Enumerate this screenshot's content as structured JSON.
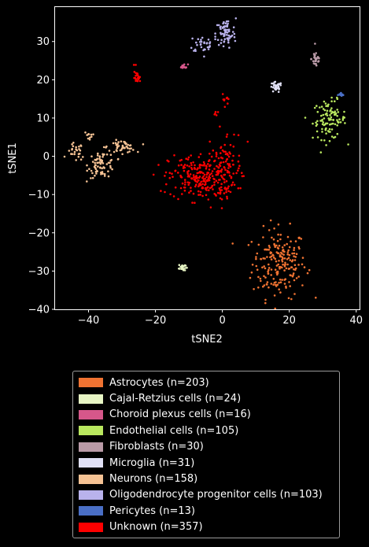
{
  "chart_data": {
    "type": "scatter",
    "xlabel": "tSNE2",
    "ylabel": "tSNE1",
    "xlim": [
      -50,
      41
    ],
    "ylim": [
      -40,
      39
    ],
    "xticks": [
      -40,
      -20,
      0,
      20,
      40
    ],
    "yticks": [
      -40,
      -30,
      -20,
      -10,
      0,
      10,
      20,
      30
    ],
    "grid": false,
    "legend_position": "bottom, outside plot",
    "series": [
      {
        "name": "Astrocytes (n=203)",
        "color": "#f07332",
        "clusters": [
          {
            "cx": 17,
            "cy": -28,
            "sx": 4,
            "sy": 4.5,
            "n": 203
          }
        ]
      },
      {
        "name": "Cajal-Retzius cells (n=24)",
        "color": "#e7f5c4",
        "clusters": [
          {
            "cx": -12,
            "cy": -29,
            "sx": 0.5,
            "sy": 0.5,
            "n": 24
          }
        ]
      },
      {
        "name": "Choroid plexus cells (n=16)",
        "color": "#d6578a",
        "clusters": [
          {
            "cx": -11.5,
            "cy": 23.5,
            "sx": 0.6,
            "sy": 0.3,
            "n": 16
          }
        ]
      },
      {
        "name": "Endothelial cells (n=105)",
        "color": "#b9e75f",
        "clusters": [
          {
            "cx": 32,
            "cy": 9.5,
            "sx": 2.5,
            "sy": 2.5,
            "n": 105
          }
        ]
      },
      {
        "name": "Fibroblasts (n=30)",
        "color": "#b99aa7",
        "clusters": [
          {
            "cx": 28,
            "cy": 25.5,
            "sx": 0.7,
            "sy": 1.2,
            "n": 30
          }
        ]
      },
      {
        "name": "Microglia (n=31)",
        "color": "#e0e0f5",
        "clusters": [
          {
            "cx": 16,
            "cy": 18,
            "sx": 0.9,
            "sy": 0.7,
            "n": 31
          }
        ]
      },
      {
        "name": "Neurons (n=158)",
        "color": "#f5c294",
        "clusters": [
          {
            "cx": -44,
            "cy": 1,
            "sx": 1.2,
            "sy": 1.2,
            "n": 25
          },
          {
            "cx": -36,
            "cy": -2,
            "sx": 2,
            "sy": 1.8,
            "n": 78
          },
          {
            "cx": -30,
            "cy": 2.5,
            "sx": 2,
            "sy": 0.8,
            "n": 45
          },
          {
            "cx": -40,
            "cy": 5.5,
            "sx": 0.6,
            "sy": 0.5,
            "n": 10
          }
        ]
      },
      {
        "name": "Oligodendrocyte progenitor cells (n=103)",
        "color": "#b9b2ec",
        "clusters": [
          {
            "cx": 1,
            "cy": 32,
            "sx": 1.5,
            "sy": 2,
            "n": 68
          },
          {
            "cx": -5,
            "cy": 29.5,
            "sx": 2.5,
            "sy": 1.2,
            "n": 35
          }
        ]
      },
      {
        "name": "Pericytes (n=13)",
        "color": "#4a6fc6",
        "clusters": [
          {
            "cx": 35.5,
            "cy": 16,
            "sx": 0.5,
            "sy": 0.3,
            "n": 13
          }
        ]
      },
      {
        "name": "Unknown (n=357)",
        "color": "#ff0000",
        "clusters": [
          {
            "cx": -6,
            "cy": -5.5,
            "sx": 5,
            "sy": 3,
            "n": 260
          },
          {
            "cx": 1,
            "cy": -1,
            "sx": 2.5,
            "sy": 4,
            "n": 60
          },
          {
            "cx": -25.5,
            "cy": 20.5,
            "sx": 0.5,
            "sy": 0.7,
            "n": 20
          },
          {
            "cx": 1,
            "cy": 15,
            "sx": 0.5,
            "sy": 0.8,
            "n": 10
          },
          {
            "cx": -2,
            "cy": 11,
            "sx": 0.6,
            "sy": 0.4,
            "n": 5
          },
          {
            "cx": -26,
            "cy": 24,
            "sx": 0.2,
            "sy": 0.2,
            "n": 2
          }
        ]
      }
    ]
  }
}
